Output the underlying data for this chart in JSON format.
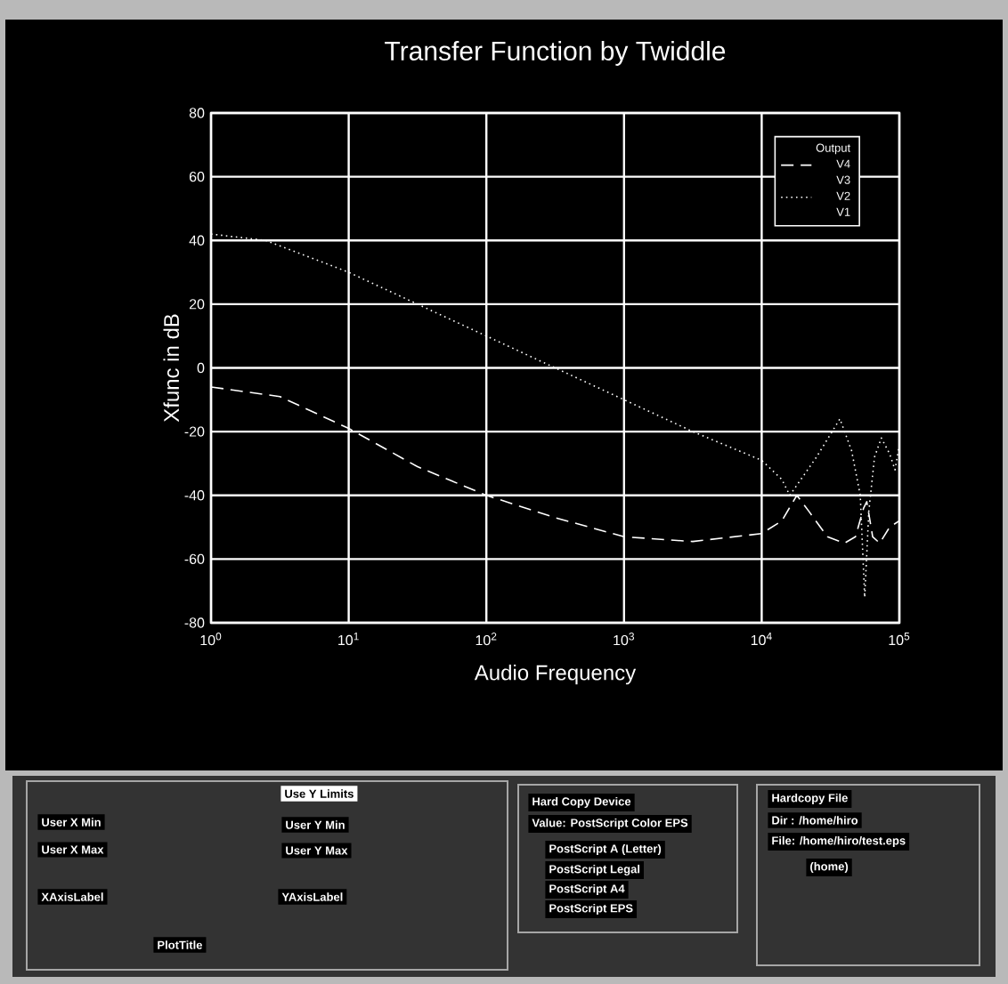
{
  "chart_data": {
    "type": "line",
    "title": "Transfer Function by Twiddle",
    "xlabel": "Audio Frequency",
    "ylabel": "Xfunc  in  dB",
    "legend_title": "Output",
    "log": "x",
    "xlim": [
      1,
      100000
    ],
    "xticks": [
      {
        "value": 1,
        "label": "10$^{0}$"
      },
      {
        "value": 10,
        "label": "10$^{1}$"
      },
      {
        "value": 100,
        "label": "10$^{2}$"
      },
      {
        "value": 1000,
        "label": "10$^{3}$"
      },
      {
        "value": 10000,
        "label": "10$^{4}$"
      },
      {
        "value": 100000,
        "label": "10$^{5}$"
      }
    ],
    "ylim": [
      -80,
      80
    ],
    "yticks": [
      -80,
      -60,
      -40,
      -20,
      0,
      20,
      40,
      60,
      80
    ],
    "grid": true,
    "legend": "top right",
    "marker": "none",
    "series": [
      {
        "name": "V4",
        "color": "#ffffff",
        "line_style": "dashed",
        "x": [
          1,
          3.16,
          10,
          31.6,
          100,
          316,
          1000,
          3160,
          10000,
          14000,
          18000,
          22000,
          30000,
          40000,
          48000,
          55000,
          58000,
          64000,
          72000,
          85000,
          100000
        ],
        "values": [
          -6,
          -9,
          -19,
          -31,
          -40,
          -47,
          -53,
          -54.5,
          -52,
          -48,
          -40,
          -45,
          -53,
          -55,
          -53,
          -44,
          -42,
          -53,
          -55,
          -50,
          -48
        ]
      },
      {
        "name": "V3"
      },
      {
        "name": "V2",
        "color": "#ffffff",
        "line_style": "dotted",
        "x": [
          1,
          2.5,
          10,
          31.6,
          100,
          316,
          1000,
          3160,
          10000,
          14000,
          16000,
          25000,
          37000,
          45000,
          52000,
          56000,
          60000,
          66000,
          74000,
          85000,
          93000,
          100000
        ],
        "values": [
          42,
          40,
          30,
          20,
          10,
          0,
          -10,
          -20,
          -29,
          -35,
          -40,
          -28,
          -16,
          -26,
          -40,
          -72,
          -45,
          -28,
          -22,
          -27,
          -32,
          -24
        ]
      },
      {
        "name": "V1"
      }
    ],
    "annotations": [
      "Use Y Limits",
      "User X Min",
      "User X Max",
      "User Y Min",
      "User Y Max",
      "XAxisLabel",
      "YAxisLabel",
      "PlotTitle",
      "Hard Copy Device",
      "Value: PostScript Color EPS",
      "PostScript A (Letter)",
      "PostScript Legal",
      "PostScript A4",
      "PostScript EPS",
      "Hardcopy File",
      "Dir : /home/hiro",
      "File: /home/hiro/test.eps",
      "(home)"
    ]
  }
}
